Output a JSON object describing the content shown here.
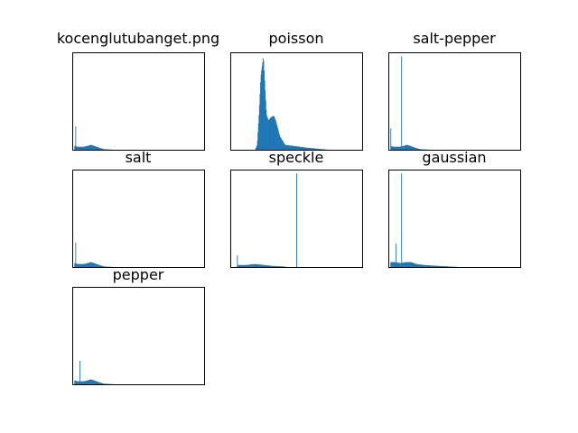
{
  "figure": {
    "background": "#ffffff",
    "bar_color": "#1f77b4",
    "axes_color": "#000000"
  },
  "chart_data": [
    {
      "type": "bar",
      "title": "kocenglutubanget.png",
      "xlabel": "",
      "ylabel": "",
      "xlim": [
        0,
        256
      ],
      "ylim": [
        0,
        100
      ],
      "grid": false,
      "ticks_visible": false,
      "series": [
        {
          "shape": "dark-low-mode",
          "spikes": [
            {
              "x": 6,
              "value": 24
            }
          ],
          "segments": [
            {
              "x": [
                4,
                10
              ],
              "start": 4,
              "end": 3
            },
            {
              "x": [
                10,
                22
              ],
              "start": 3,
              "end": 3
            },
            {
              "x": [
                22,
                30
              ],
              "start": 3,
              "end": 4
            },
            {
              "x": [
                30,
                36
              ],
              "start": 4,
              "end": 5
            },
            {
              "x": [
                36,
                42
              ],
              "start": 5,
              "end": 4
            },
            {
              "x": [
                42,
                52
              ],
              "start": 4,
              "end": 2
            },
            {
              "x": [
                52,
                62
              ],
              "start": 2,
              "end": 0.5
            },
            {
              "x": [
                62,
                80
              ],
              "start": 0.5,
              "end": 0
            }
          ]
        }
      ]
    },
    {
      "type": "bar",
      "title": "poisson",
      "xlabel": "",
      "ylabel": "",
      "xlim": [
        0,
        256
      ],
      "ylim": [
        0,
        100
      ],
      "grid": false,
      "ticks_visible": false,
      "series": [
        {
          "shape": "bimodal",
          "segments": [
            {
              "x": [
                48,
                52
              ],
              "start": 0,
              "end": 5
            },
            {
              "x": [
                52,
                56
              ],
              "start": 5,
              "end": 40
            },
            {
              "x": [
                56,
                59
              ],
              "start": 40,
              "end": 75
            },
            {
              "x": [
                59,
                64
              ],
              "start": 75,
              "end": 96
            },
            {
              "x": [
                64,
                67
              ],
              "start": 96,
              "end": 66
            },
            {
              "x": [
                67,
                70
              ],
              "start": 66,
              "end": 36
            },
            {
              "x": [
                70,
                74
              ],
              "start": 36,
              "end": 30
            },
            {
              "x": [
                74,
                78
              ],
              "start": 30,
              "end": 33
            },
            {
              "x": [
                78,
                84
              ],
              "start": 33,
              "end": 35
            },
            {
              "x": [
                84,
                88
              ],
              "start": 35,
              "end": 30
            },
            {
              "x": [
                88,
                96
              ],
              "start": 30,
              "end": 14
            },
            {
              "x": [
                96,
                106
              ],
              "start": 14,
              "end": 5
            },
            {
              "x": [
                106,
                150
              ],
              "start": 5,
              "end": 2
            },
            {
              "x": [
                150,
                190
              ],
              "start": 2,
              "end": 0
            }
          ]
        }
      ]
    },
    {
      "type": "bar",
      "title": "salt-pepper",
      "xlabel": "",
      "ylabel": "",
      "xlim": [
        0,
        256
      ],
      "ylim": [
        0,
        100
      ],
      "grid": false,
      "ticks_visible": false,
      "series": [
        {
          "shape": "dark-low-mode",
          "spikes": [
            {
              "x": 4,
              "value": 22
            },
            {
              "x": 25,
              "value": 96
            }
          ],
          "segments": [
            {
              "x": [
                4,
                10
              ],
              "start": 4,
              "end": 3
            },
            {
              "x": [
                10,
                22
              ],
              "start": 3,
              "end": 3
            },
            {
              "x": [
                22,
                30
              ],
              "start": 3,
              "end": 4
            },
            {
              "x": [
                30,
                36
              ],
              "start": 4,
              "end": 5
            },
            {
              "x": [
                36,
                42
              ],
              "start": 5,
              "end": 4
            },
            {
              "x": [
                42,
                52
              ],
              "start": 4,
              "end": 2
            },
            {
              "x": [
                52,
                62
              ],
              "start": 2,
              "end": 0.5
            },
            {
              "x": [
                62,
                80
              ],
              "start": 0.5,
              "end": 0
            }
          ]
        }
      ]
    },
    {
      "type": "bar",
      "title": "salt",
      "xlabel": "",
      "ylabel": "",
      "xlim": [
        0,
        256
      ],
      "ylim": [
        0,
        100
      ],
      "grid": false,
      "ticks_visible": false,
      "series": [
        {
          "shape": "dark-low-mode",
          "spikes": [
            {
              "x": 6,
              "value": 25
            }
          ],
          "segments": [
            {
              "x": [
                4,
                10
              ],
              "start": 4,
              "end": 3
            },
            {
              "x": [
                10,
                22
              ],
              "start": 3,
              "end": 3
            },
            {
              "x": [
                22,
                30
              ],
              "start": 3,
              "end": 4
            },
            {
              "x": [
                30,
                36
              ],
              "start": 4,
              "end": 5
            },
            {
              "x": [
                36,
                42
              ],
              "start": 5,
              "end": 4
            },
            {
              "x": [
                42,
                52
              ],
              "start": 4,
              "end": 2
            },
            {
              "x": [
                52,
                62
              ],
              "start": 2,
              "end": 0.5
            },
            {
              "x": [
                62,
                80
              ],
              "start": 0.5,
              "end": 0
            }
          ]
        }
      ]
    },
    {
      "type": "bar",
      "title": "speckle",
      "xlabel": "",
      "ylabel": "",
      "xlim": [
        0,
        256
      ],
      "ylim": [
        0,
        100
      ],
      "grid": false,
      "ticks_visible": false,
      "series": [
        {
          "shape": "dark-low-mode",
          "spikes": [
            {
              "x": 13,
              "value": 12
            },
            {
              "x": 128,
              "value": 96
            }
          ],
          "segments": [
            {
              "x": [
                14,
                30
              ],
              "start": 2,
              "end": 2
            },
            {
              "x": [
                30,
                48
              ],
              "start": 2,
              "end": 3
            },
            {
              "x": [
                48,
                66
              ],
              "start": 3,
              "end": 2
            },
            {
              "x": [
                66,
                84
              ],
              "start": 2,
              "end": 1
            },
            {
              "x": [
                84,
                104
              ],
              "start": 1,
              "end": 0.5
            },
            {
              "x": [
                104,
                110
              ],
              "start": 0.5,
              "end": 0
            }
          ]
        }
      ]
    },
    {
      "type": "bar",
      "title": "gaussian",
      "xlabel": "",
      "ylabel": "",
      "xlim": [
        0,
        256
      ],
      "ylim": [
        0,
        100
      ],
      "grid": false,
      "ticks_visible": false,
      "series": [
        {
          "shape": "dark-low-mode",
          "spikes": [
            {
              "x": 14,
              "value": 24
            },
            {
              "x": 25,
              "value": 96
            }
          ],
          "segments": [
            {
              "x": [
                4,
                12
              ],
              "start": 5,
              "end": 5
            },
            {
              "x": [
                12,
                24
              ],
              "start": 5,
              "end": 4
            },
            {
              "x": [
                24,
                34
              ],
              "start": 4,
              "end": 5
            },
            {
              "x": [
                34,
                44
              ],
              "start": 5,
              "end": 5
            },
            {
              "x": [
                44,
                54
              ],
              "start": 5,
              "end": 3
            },
            {
              "x": [
                54,
                70
              ],
              "start": 3,
              "end": 2
            },
            {
              "x": [
                70,
                100
              ],
              "start": 2,
              "end": 1
            },
            {
              "x": [
                100,
                136
              ],
              "start": 1,
              "end": 0
            }
          ]
        }
      ]
    },
    {
      "type": "bar",
      "title": "pepper",
      "xlabel": "",
      "ylabel": "",
      "xlim": [
        0,
        256
      ],
      "ylim": [
        0,
        100
      ],
      "grid": false,
      "ticks_visible": false,
      "series": [
        {
          "shape": "dark-low-mode",
          "spikes": [
            {
              "x": 14,
              "value": 24
            }
          ],
          "segments": [
            {
              "x": [
                4,
                10
              ],
              "start": 4,
              "end": 3
            },
            {
              "x": [
                10,
                22
              ],
              "start": 3,
              "end": 3
            },
            {
              "x": [
                22,
                30
              ],
              "start": 3,
              "end": 4
            },
            {
              "x": [
                30,
                36
              ],
              "start": 4,
              "end": 5
            },
            {
              "x": [
                36,
                42
              ],
              "start": 5,
              "end": 4
            },
            {
              "x": [
                42,
                52
              ],
              "start": 4,
              "end": 2
            },
            {
              "x": [
                52,
                62
              ],
              "start": 2,
              "end": 0.5
            },
            {
              "x": [
                62,
                80
              ],
              "start": 0.5,
              "end": 0
            }
          ]
        }
      ]
    }
  ]
}
